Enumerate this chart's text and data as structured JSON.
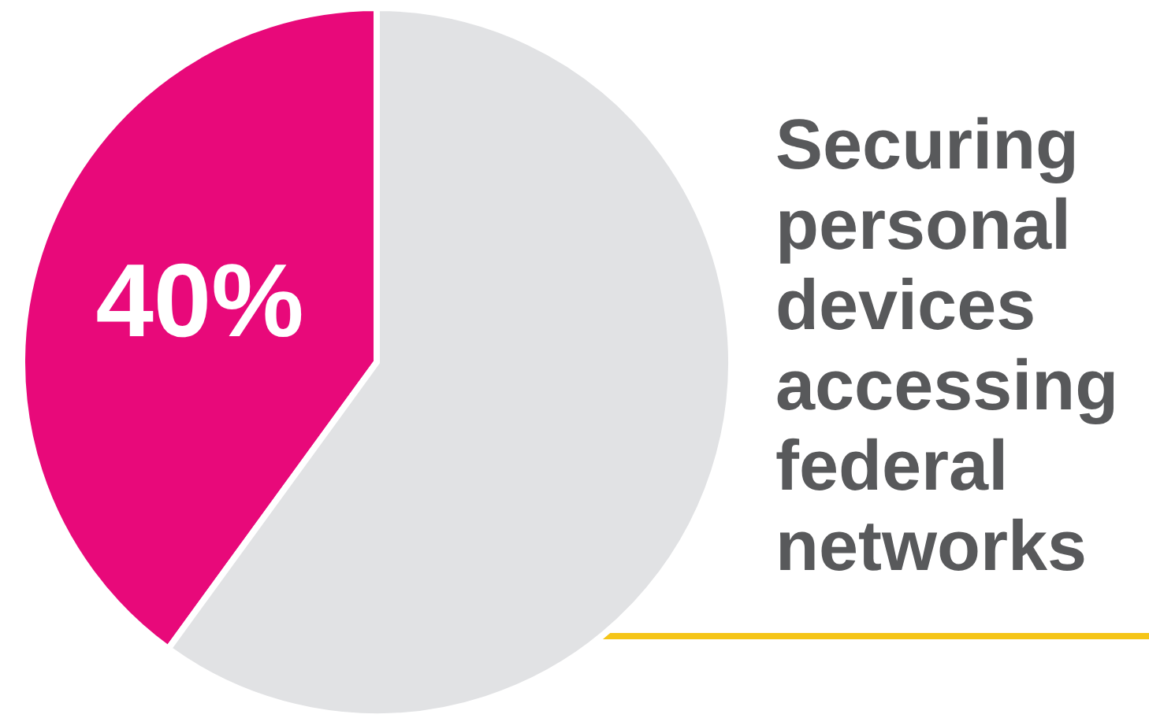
{
  "chart_data": {
    "type": "pie",
    "title": "Securing personal devices accessing federal networks",
    "categories": [
      null,
      null
    ],
    "values": [
      40,
      60
    ],
    "colors": [
      "#e8097a",
      "#e1e2e4"
    ],
    "value_labels": [
      "40%",
      null
    ]
  }
}
